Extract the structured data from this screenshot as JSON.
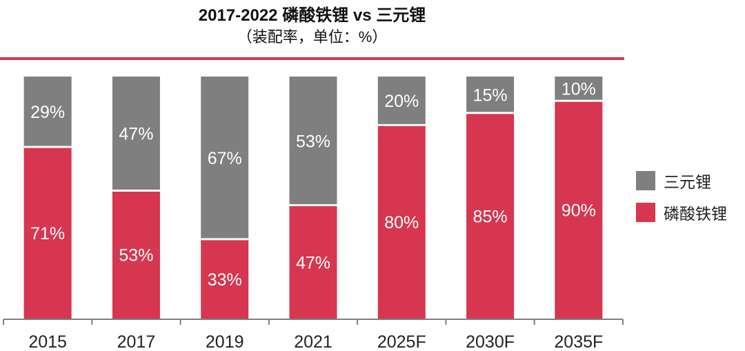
{
  "header": {
    "title": "2017-2022 磷酸铁锂 vs 三元锂",
    "subtitle": "（装配率，单位：%）"
  },
  "colors": {
    "accent": "#d6364f",
    "lfp": "#d6364f",
    "ncm": "#7f7f7f",
    "axis": "#7f7f7f"
  },
  "chart_data": {
    "type": "bar",
    "stacked": true,
    "categories": [
      "2015",
      "2017",
      "2019",
      "2021",
      "2025F",
      "2030F",
      "2035F"
    ],
    "series": [
      {
        "name": "磷酸铁锂",
        "values": [
          71,
          53,
          33,
          47,
          80,
          85,
          90
        ],
        "color": "#d6364f"
      },
      {
        "name": "三元锂",
        "values": [
          29,
          47,
          67,
          53,
          20,
          15,
          10
        ],
        "color": "#7f7f7f"
      }
    ],
    "ylim": [
      0,
      100
    ],
    "legend_position": "right",
    "grid": false
  }
}
